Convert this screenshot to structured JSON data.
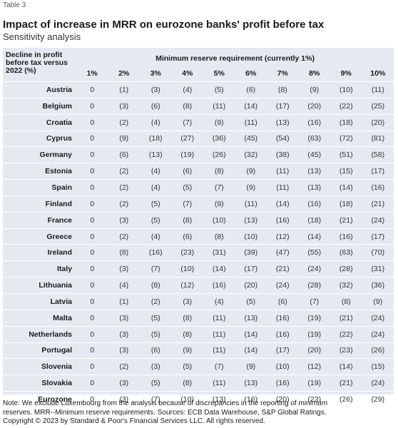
{
  "table_label": "Table 3",
  "title": "Impact of increase in MRR on eurozone banks' profit before tax",
  "subtitle": "Sensitivity analysis",
  "footnote": {
    "line1": "Note: We exclude Luxembourg from the analysis because of discrepancies in the reporting of minimum",
    "line2": "reserves. MRR--Minimum reserve requirements. Sources: ECB Data Warehouse, S&P Global Ratings.",
    "line3": "Copyright © 2023 by Standard & Poor's Financial Services LLC. All rights reserved."
  },
  "colors": {
    "table_bg": "#e5eaf1",
    "row_divider": "#ffffff"
  },
  "chart_data": {
    "type": "table",
    "row_header": "Decline in profit before tax versus 2022 (%)",
    "column_group_header": "Minimum reserve requirement (currently 1%)",
    "columns": [
      "1%",
      "2%",
      "3%",
      "4%",
      "5%",
      "6%",
      "7%",
      "8%",
      "9%",
      "10%"
    ],
    "rows": [
      {
        "label": "Austria",
        "values": [
          "0",
          "(1)",
          "(3)",
          "(4)",
          "(5)",
          "(6)",
          "(8)",
          "(9)",
          "(10)",
          "(11)"
        ]
      },
      {
        "label": "Belgium",
        "values": [
          "0",
          "(3)",
          "(6)",
          "(8)",
          "(11)",
          "(14)",
          "(17)",
          "(20)",
          "(22)",
          "(25)"
        ]
      },
      {
        "label": "Croatia",
        "values": [
          "0",
          "(2)",
          "(4)",
          "(7)",
          "(9)",
          "(11)",
          "(13)",
          "(16)",
          "(18)",
          "(20)"
        ]
      },
      {
        "label": "Cyprus",
        "values": [
          "0",
          "(9)",
          "(18)",
          "(27)",
          "(36)",
          "(45)",
          "(54)",
          "(63)",
          "(72)",
          "(81)"
        ]
      },
      {
        "label": "Germany",
        "values": [
          "0",
          "(6)",
          "(13)",
          "(19)",
          "(26)",
          "(32)",
          "(38)",
          "(45)",
          "(51)",
          "(58)"
        ]
      },
      {
        "label": "Estonia",
        "values": [
          "0",
          "(2)",
          "(4)",
          "(6)",
          "(8)",
          "(9)",
          "(11)",
          "(13)",
          "(15)",
          "(17)"
        ]
      },
      {
        "label": "Spain",
        "values": [
          "0",
          "(2)",
          "(4)",
          "(5)",
          "(7)",
          "(9)",
          "(11)",
          "(13)",
          "(14)",
          "(16)"
        ]
      },
      {
        "label": "Finland",
        "values": [
          "0",
          "(2)",
          "(5)",
          "(7)",
          "(9)",
          "(11)",
          "(14)",
          "(16)",
          "(18)",
          "(21)"
        ]
      },
      {
        "label": "France",
        "values": [
          "0",
          "(3)",
          "(5)",
          "(8)",
          "(10)",
          "(13)",
          "(16)",
          "(18)",
          "(21)",
          "(24)"
        ]
      },
      {
        "label": "Greece",
        "values": [
          "0",
          "(2)",
          "(4)",
          "(6)",
          "(8)",
          "(10)",
          "(12)",
          "(14)",
          "(16)",
          "(17)"
        ]
      },
      {
        "label": "Ireland",
        "values": [
          "0",
          "(8)",
          "(16)",
          "(23)",
          "(31)",
          "(39)",
          "(47)",
          "(55)",
          "(63)",
          "(70)"
        ]
      },
      {
        "label": "Italy",
        "values": [
          "0",
          "(3)",
          "(7)",
          "(10)",
          "(14)",
          "(17)",
          "(21)",
          "(24)",
          "(28)",
          "(31)"
        ]
      },
      {
        "label": "Lithuania",
        "values": [
          "0",
          "(4)",
          "(8)",
          "(12)",
          "(16)",
          "(20)",
          "(24)",
          "(28)",
          "(32)",
          "(36)"
        ]
      },
      {
        "label": "Latvia",
        "values": [
          "0",
          "(1)",
          "(2)",
          "(3)",
          "(4)",
          "(5)",
          "(6)",
          "(7)",
          "(8)",
          "(9)"
        ]
      },
      {
        "label": "Malta",
        "values": [
          "0",
          "(3)",
          "(5)",
          "(8)",
          "(11)",
          "(13)",
          "(16)",
          "(19)",
          "(21)",
          "(24)"
        ]
      },
      {
        "label": "Netherlands",
        "values": [
          "0",
          "(3)",
          "(5)",
          "(8)",
          "(11)",
          "(14)",
          "(16)",
          "(19)",
          "(22)",
          "(24)"
        ]
      },
      {
        "label": "Portugal",
        "values": [
          "0",
          "(3)",
          "(6)",
          "(9)",
          "(11)",
          "(14)",
          "(17)",
          "(20)",
          "(23)",
          "(26)"
        ]
      },
      {
        "label": "Slovenia",
        "values": [
          "0",
          "(2)",
          "(3)",
          "(5)",
          "(7)",
          "(9)",
          "(10)",
          "(12)",
          "(14)",
          "(15)"
        ]
      },
      {
        "label": "Slovakia",
        "values": [
          "0",
          "(3)",
          "(5)",
          "(8)",
          "(11)",
          "(13)",
          "(16)",
          "(19)",
          "(21)",
          "(24)"
        ]
      },
      {
        "label": "Eurozone",
        "values": [
          "0",
          "(3)",
          "(7)",
          "(10)",
          "(13)",
          "(16)",
          "(20)",
          "(23)",
          "(26)",
          "(29)"
        ]
      }
    ]
  }
}
